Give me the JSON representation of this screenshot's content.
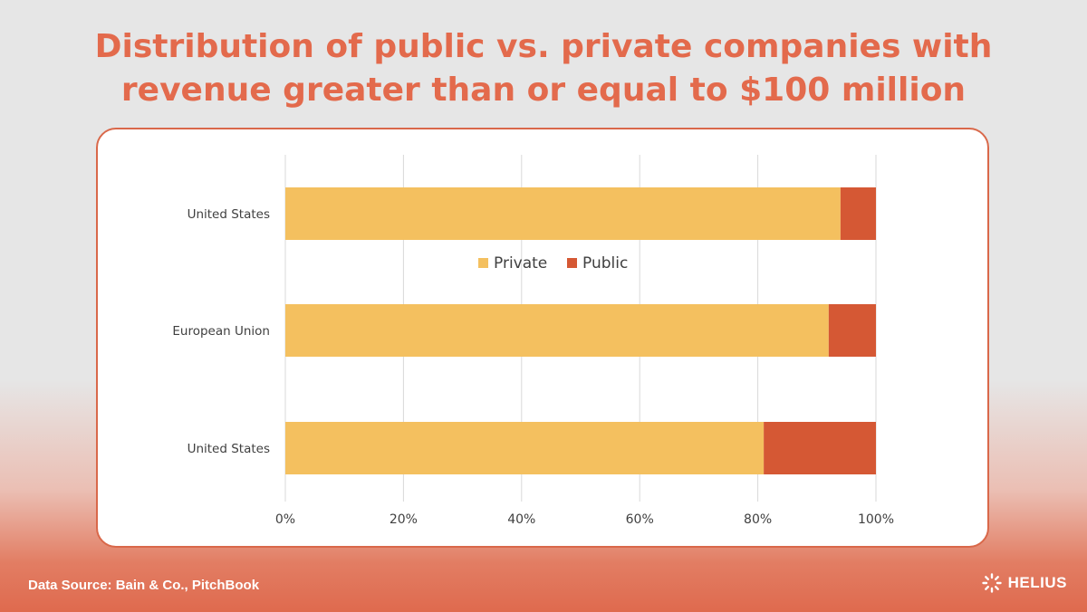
{
  "header": {
    "title_line1": "Distribution of public vs. private companies with",
    "title_line2": "revenue greater than or equal to $100 million"
  },
  "footer": {
    "source": "Data Source: Bain & Co., PitchBook",
    "brand": "HELIUS",
    "brand_icon": "helius-logo-icon"
  },
  "colors": {
    "private": "#f4c05f",
    "public": "#d55834",
    "accent": "#e36a4c",
    "grid": "#d9d9d9",
    "text": "#404040"
  },
  "chart_data": {
    "type": "bar",
    "orientation": "horizontal",
    "stacked": true,
    "categories": [
      "United States",
      "European Union",
      "United States"
    ],
    "series": [
      {
        "name": "Private",
        "values": [
          94,
          92,
          81
        ]
      },
      {
        "name": "Public",
        "values": [
          6,
          8,
          19
        ]
      }
    ],
    "xlim": [
      0,
      100
    ],
    "x_ticks": [
      "0%",
      "20%",
      "40%",
      "60%",
      "80%",
      "100%"
    ],
    "grid": "vertical",
    "legend_position": "top-center"
  }
}
